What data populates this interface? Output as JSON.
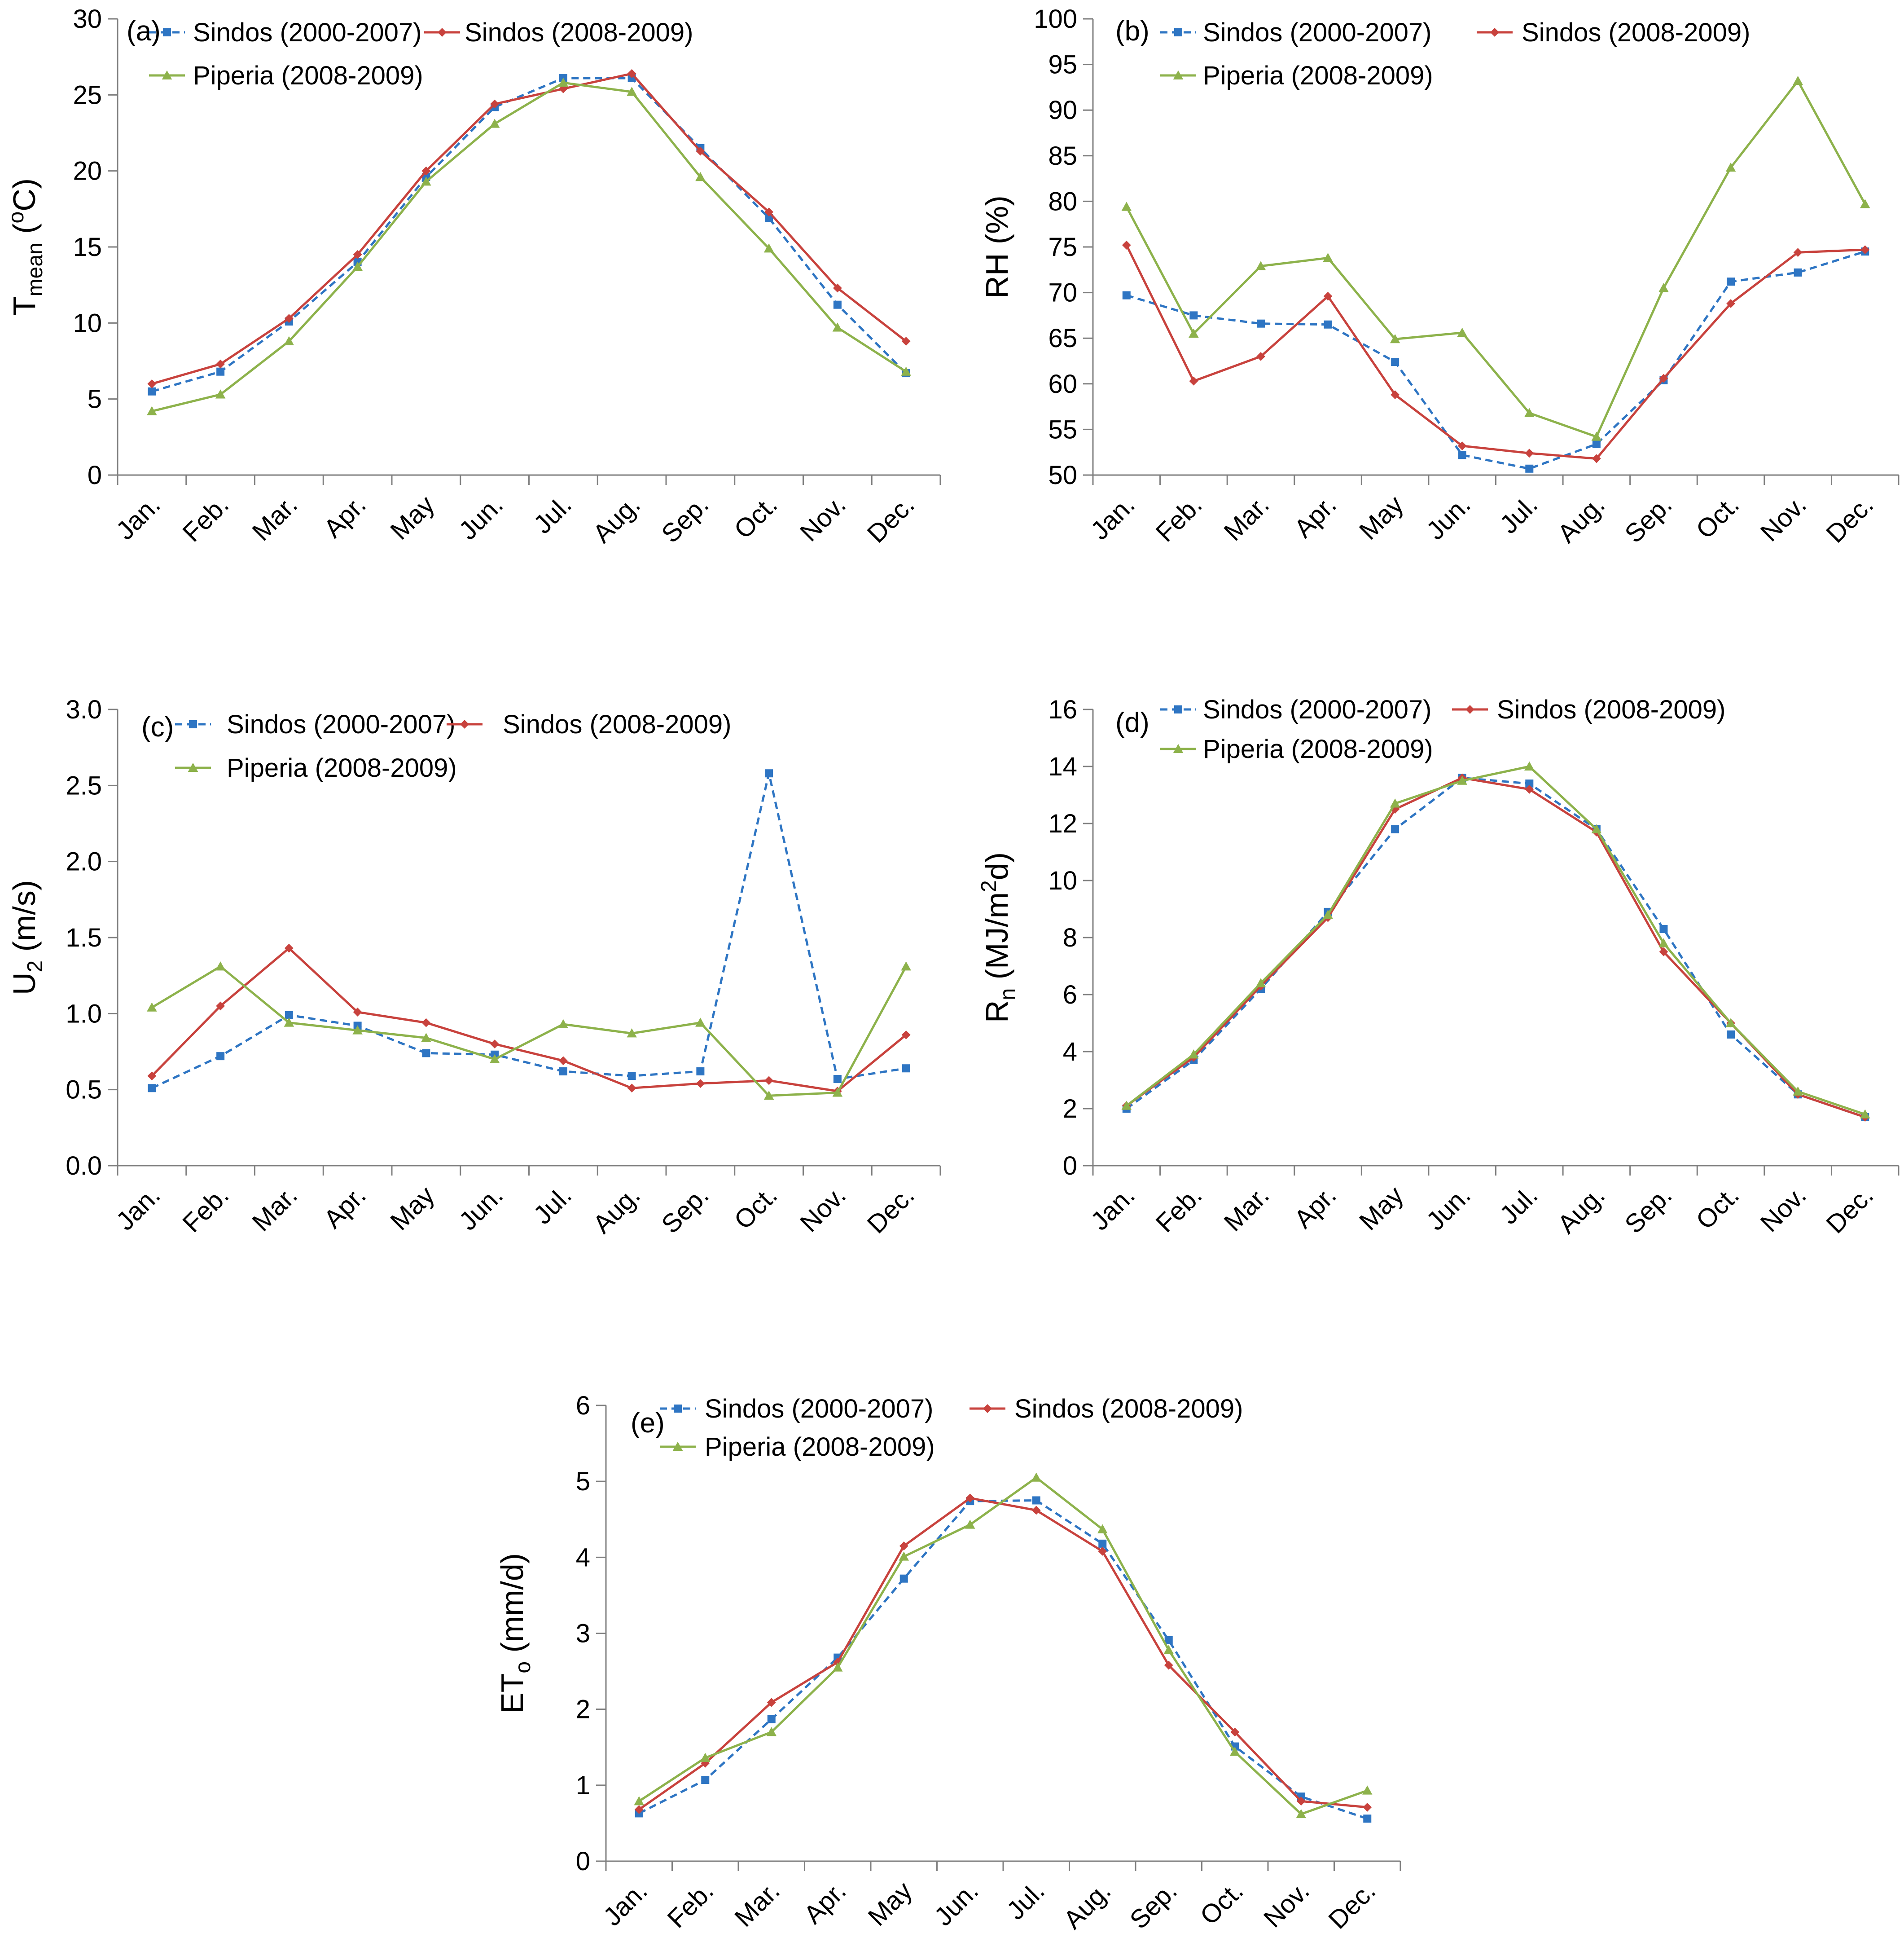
{
  "figure": {
    "series_styles": [
      {
        "key": "s1",
        "color": "#2e75c3",
        "dash": true,
        "marker": "square"
      },
      {
        "key": "s2",
        "color": "#c8423d",
        "dash": false,
        "marker": "diamond"
      },
      {
        "key": "s3",
        "color": "#8db24b",
        "dash": false,
        "marker": "triangle"
      }
    ]
  },
  "chart_data": [
    {
      "panel": "(a)",
      "type": "line",
      "title": "",
      "ylabel_main": "T",
      "ylabel_sub": "mean",
      "ylabel_sup": "",
      "ylabel_rest": " (",
      "ylabel_sup2": "o",
      "ylabel_end": "C)",
      "xlabel": "",
      "categories": [
        "Jan.",
        "Feb.",
        "Mar.",
        "Apr.",
        "May",
        "Jun.",
        "Jul.",
        "Aug.",
        "Sep.",
        "Oct.",
        "Nov.",
        "Dec."
      ],
      "ylim": [
        0,
        30
      ],
      "yticks": [
        0,
        5,
        10,
        15,
        20,
        25,
        30
      ],
      "ytick_labels": [
        "0",
        "5",
        "10",
        "15",
        "20",
        "25",
        "30"
      ],
      "legend_position": "top-left",
      "series": [
        {
          "name": "Sindos (2000-2007)",
          "values": [
            5.5,
            6.8,
            10.1,
            14.0,
            19.6,
            24.2,
            26.1,
            26.1,
            21.5,
            16.9,
            11.2,
            6.7
          ]
        },
        {
          "name": "Sindos (2008-2009)",
          "values": [
            6.0,
            7.3,
            10.3,
            14.5,
            20.0,
            24.4,
            25.4,
            26.4,
            21.3,
            17.3,
            12.3,
            8.8
          ]
        },
        {
          "name": "Piperia (2008-2009)",
          "values": [
            4.2,
            5.3,
            8.8,
            13.7,
            19.3,
            23.1,
            25.8,
            25.2,
            19.6,
            14.9,
            9.7,
            6.8
          ]
        }
      ]
    },
    {
      "panel": "(b)",
      "type": "line",
      "title": "",
      "ylabel_main": "RH (%)",
      "xlabel": "",
      "categories": [
        "Jan.",
        "Feb.",
        "Mar.",
        "Apr.",
        "May",
        "Jun.",
        "Jul.",
        "Aug.",
        "Sep.",
        "Oct.",
        "Nov.",
        "Dec."
      ],
      "ylim": [
        50,
        100
      ],
      "yticks": [
        50,
        55,
        60,
        65,
        70,
        75,
        80,
        85,
        90,
        95,
        100
      ],
      "ytick_labels": [
        "50",
        "55",
        "60",
        "65",
        "70",
        "75",
        "80",
        "85",
        "90",
        "95",
        "100"
      ],
      "legend_position": "top-left",
      "series": [
        {
          "name": "Sindos (2000-2007)",
          "values": [
            69.7,
            67.5,
            66.6,
            66.5,
            62.4,
            52.2,
            50.7,
            53.4,
            60.4,
            71.2,
            72.2,
            74.5
          ]
        },
        {
          "name": "Sindos (2008-2009)",
          "values": [
            75.2,
            60.3,
            63.0,
            69.6,
            58.8,
            53.2,
            52.4,
            51.8,
            60.6,
            68.8,
            74.4,
            74.7
          ]
        },
        {
          "name": "Piperia (2008-2009)",
          "values": [
            79.4,
            65.5,
            72.9,
            73.8,
            64.9,
            65.6,
            56.8,
            54.2,
            70.5,
            83.7,
            93.2,
            79.7
          ]
        }
      ]
    },
    {
      "panel": "(c)",
      "type": "line",
      "title": "",
      "ylabel_main": "U",
      "ylabel_sub": "2",
      "ylabel_rest": " (m/s)",
      "xlabel": "",
      "categories": [
        "Jan.",
        "Feb.",
        "Mar.",
        "Apr.",
        "May",
        "Jun.",
        "Jul.",
        "Aug.",
        "Sep.",
        "Oct.",
        "Nov.",
        "Dec."
      ],
      "ylim": [
        0,
        3
      ],
      "yticks": [
        0,
        0.5,
        1,
        1.5,
        2,
        2.5,
        3
      ],
      "ytick_labels": [
        "0.0",
        "0.5",
        "1.0",
        "1.5",
        "2.0",
        "2.5",
        "3.0"
      ],
      "legend_position": "top-left",
      "series": [
        {
          "name": "Sindos (2000-2007)",
          "values": [
            0.51,
            0.72,
            0.99,
            0.92,
            0.74,
            0.73,
            0.62,
            0.59,
            0.62,
            2.58,
            0.57,
            0.64
          ]
        },
        {
          "name": "Sindos (2008-2009)",
          "values": [
            0.59,
            1.05,
            1.43,
            1.01,
            0.94,
            0.8,
            0.69,
            0.51,
            0.54,
            0.56,
            0.49,
            0.86
          ]
        },
        {
          "name": "Piperia (2008-2009)",
          "values": [
            1.04,
            1.31,
            0.94,
            0.89,
            0.84,
            0.7,
            0.93,
            0.87,
            0.94,
            0.46,
            0.48,
            1.31
          ]
        }
      ]
    },
    {
      "panel": "(d)",
      "type": "line",
      "title": "",
      "ylabel_main": "R",
      "ylabel_sub": "n",
      "ylabel_rest": " (MJ/m",
      "ylabel_sup2": "2",
      "ylabel_end": "d)",
      "xlabel": "",
      "categories": [
        "Jan.",
        "Feb.",
        "Mar.",
        "Apr.",
        "May",
        "Jun.",
        "Jul.",
        "Aug.",
        "Sep.",
        "Oct.",
        "Nov.",
        "Dec."
      ],
      "ylim": [
        0,
        16
      ],
      "yticks": [
        0,
        2,
        4,
        6,
        8,
        10,
        12,
        14,
        16
      ],
      "ytick_labels": [
        "0",
        "2",
        "4",
        "6",
        "8",
        "10",
        "12",
        "14",
        "16"
      ],
      "legend_position": "top-left",
      "series": [
        {
          "name": "Sindos (2000-2007)",
          "values": [
            2.0,
            3.7,
            6.2,
            8.9,
            11.8,
            13.6,
            13.4,
            11.8,
            8.3,
            4.6,
            2.5,
            1.7
          ]
        },
        {
          "name": "Sindos (2008-2009)",
          "values": [
            2.1,
            3.8,
            6.3,
            8.7,
            12.5,
            13.6,
            13.2,
            11.7,
            7.5,
            5.0,
            2.5,
            1.7
          ]
        },
        {
          "name": "Piperia (2008-2009)",
          "values": [
            2.1,
            3.9,
            6.4,
            8.8,
            12.7,
            13.5,
            14.0,
            11.8,
            7.8,
            5.0,
            2.6,
            1.8
          ]
        }
      ]
    },
    {
      "panel": "(e)",
      "type": "line",
      "title": "",
      "ylabel_main": "ET",
      "ylabel_sub": "o",
      "ylabel_rest": " (mm/d)",
      "xlabel": "",
      "categories": [
        "Jan.",
        "Feb.",
        "Mar.",
        "Apr.",
        "May",
        "Jun.",
        "Jul.",
        "Aug.",
        "Sep.",
        "Oct.",
        "Nov.",
        "Dec."
      ],
      "ylim": [
        0,
        6
      ],
      "yticks": [
        0,
        1,
        2,
        3,
        4,
        5,
        6
      ],
      "ytick_labels": [
        "0",
        "1",
        "2",
        "3",
        "4",
        "5",
        "6"
      ],
      "legend_position": "top-left",
      "series": [
        {
          "name": "Sindos (2000-2007)",
          "values": [
            0.63,
            1.07,
            1.87,
            2.68,
            3.72,
            4.74,
            4.75,
            4.18,
            2.91,
            1.51,
            0.85,
            0.56
          ]
        },
        {
          "name": "Sindos (2008-2009)",
          "values": [
            0.68,
            1.29,
            2.09,
            2.62,
            4.15,
            4.78,
            4.62,
            4.08,
            2.58,
            1.7,
            0.79,
            0.71
          ]
        },
        {
          "name": "Piperia (2008-2009)",
          "values": [
            0.79,
            1.36,
            1.7,
            2.55,
            4.01,
            4.43,
            5.05,
            4.37,
            2.78,
            1.44,
            0.62,
            0.93
          ]
        }
      ]
    }
  ]
}
